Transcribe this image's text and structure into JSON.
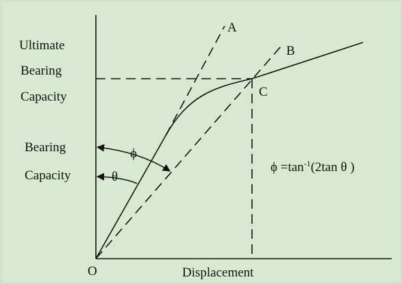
{
  "y_axis_label": [
    "Ultimate",
    "Bearing",
    "Capacity"
  ],
  "initial_label": [
    "Bearing",
    "Capacity"
  ],
  "x_axis_label": "Displacement",
  "points": {
    "origin": "O",
    "a": "A",
    "b": "B",
    "c": "C"
  },
  "angles": {
    "phi": "ϕ",
    "theta": "θ"
  },
  "formula": {
    "lhs": "ϕ =tan",
    "sup": "-1",
    "rhs": "(2tan θ )"
  }
}
